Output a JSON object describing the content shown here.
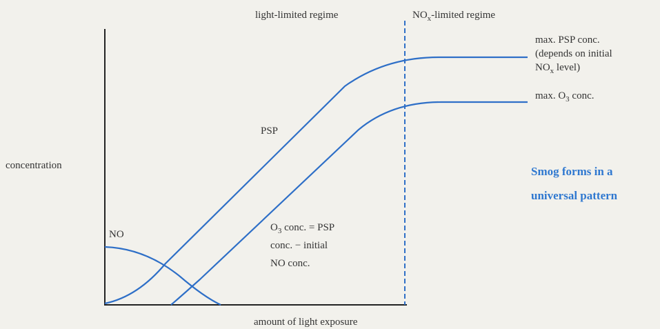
{
  "labels": {
    "light_regime": "light-limited regime",
    "nox_regime": {
      "a": "NO",
      "sub": "x",
      "b": "-limited regime"
    },
    "max_psp_1": "max. PSP conc.",
    "max_psp_2": "(depends on initial",
    "max_psp_3": {
      "a": "NO",
      "sub": "x",
      "b": " level)"
    },
    "max_o3": {
      "a": "max. O",
      "sub": "3",
      "b": " conc."
    },
    "psp": "PSP",
    "y_axis": "concentration",
    "x_axis": "amount of light exposure",
    "no": "NO",
    "o3_note_1": {
      "a": "O",
      "sub": "3",
      "b": " conc. = PSP"
    },
    "o3_note_2": "conc. − initial",
    "o3_note_3": "NO conc.",
    "caption_1": "Smog forms in a",
    "caption_2": "universal pattern"
  }
}
